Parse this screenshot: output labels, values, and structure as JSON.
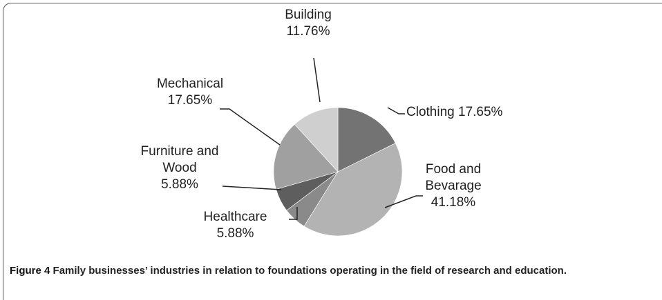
{
  "chart_data": {
    "type": "pie",
    "categories": [
      "Clothing",
      "Food and Bevarage",
      "Healthcare",
      "Furniture and Wood",
      "Mechanical",
      "Building"
    ],
    "values": [
      17.65,
      41.18,
      5.88,
      5.88,
      17.65,
      11.76
    ],
    "value_labels": [
      "17.65%",
      "41.18%",
      "5.88%",
      "5.88%",
      "17.65%",
      "11.76%"
    ],
    "colors": [
      "#737373",
      "#b3b3b3",
      "#8a8a8a",
      "#5e5e5e",
      "#a0a0a0",
      "#cfcfcf"
    ]
  },
  "caption_label": "Figure 4",
  "caption": "Family businesses’ industries in relation to foundations operating in the field of research and education."
}
